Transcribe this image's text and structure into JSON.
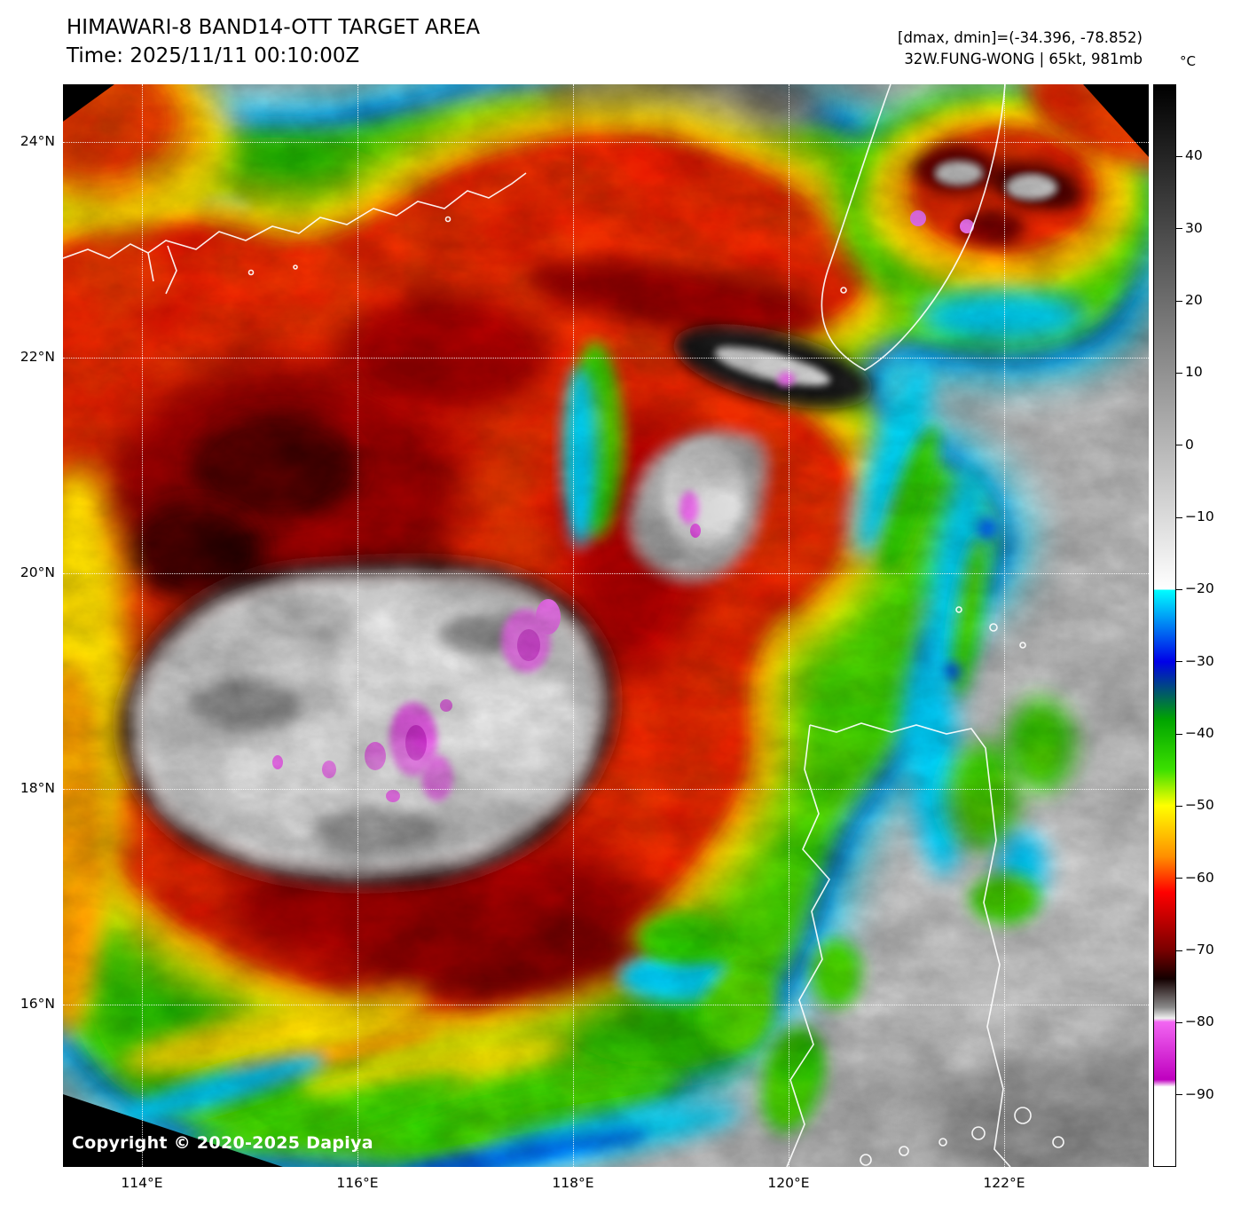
{
  "header": {
    "title": "HIMAWARI-8 BAND14-OTT TARGET AREA",
    "time": "Time: 2025/11/11 00:10:00Z",
    "annotation_line1": "[dmax, dmin]=(-34.396, -78.852)",
    "annotation_line2": "32W.FUNG-WONG | 65kt, 981mb"
  },
  "map": {
    "copyright": "Copyright © 2020-2025 Dapiya"
  },
  "chart_data": {
    "type": "heatmap",
    "title": "HIMAWARI-8 BAND14-OTT TARGET AREA",
    "time": "2025/11/11 00:10:00Z",
    "satellite": "HIMAWARI-8",
    "band": "BAND14-OTT",
    "storm": {
      "designation": "32W",
      "name": "FUNG-WONG",
      "intensity": "65kt",
      "pressure": "981mb"
    },
    "dmax": -34.396,
    "dmin": -78.852,
    "axes": {
      "lon_range": [
        113.268,
        123.342
      ],
      "lat_range": [
        14.49,
        24.535
      ],
      "lon_ticks": [
        {
          "value": 114,
          "label": "114°E"
        },
        {
          "value": 116,
          "label": "116°E"
        },
        {
          "value": 118,
          "label": "118°E"
        },
        {
          "value": 120,
          "label": "120°E"
        },
        {
          "value": 122,
          "label": "122°E"
        }
      ],
      "lat_ticks": [
        {
          "value": 24,
          "label": "24°N"
        },
        {
          "value": 22,
          "label": "22°N"
        },
        {
          "value": 20,
          "label": "20°N"
        },
        {
          "value": 18,
          "label": "18°N"
        },
        {
          "value": 16,
          "label": "16°N"
        }
      ]
    },
    "colorbar": {
      "unit": "°C",
      "max": 50,
      "min": -100,
      "ticks": [
        40,
        30,
        20,
        10,
        0,
        -10,
        -20,
        -30,
        -40,
        -50,
        -60,
        -70,
        -80,
        -90
      ],
      "tick_labels": [
        "40",
        "30",
        "20",
        "10",
        "0",
        "−10",
        "−20",
        "−30",
        "−40",
        "−50",
        "−60",
        "−70",
        "−80",
        "−90"
      ],
      "stops": [
        {
          "t": 50,
          "color": "#000000"
        },
        {
          "t": -20,
          "color": "#ffffff"
        },
        {
          "t": -20,
          "color": "#00ffff"
        },
        {
          "t": -30,
          "color": "#0000e8"
        },
        {
          "t": -38,
          "color": "#00a400"
        },
        {
          "t": -45,
          "color": "#3ce000"
        },
        {
          "t": -50,
          "color": "#ffff00"
        },
        {
          "t": -57,
          "color": "#ff9000"
        },
        {
          "t": -62,
          "color": "#ff0000"
        },
        {
          "t": -70,
          "color": "#7a0000"
        },
        {
          "t": -74,
          "color": "#140000"
        },
        {
          "t": -78,
          "color": "#8a8a8a"
        },
        {
          "t": -79.5,
          "color": "#efefef"
        },
        {
          "t": -80,
          "color": "#f266f2"
        },
        {
          "t": -88,
          "color": "#bf00bf"
        },
        {
          "t": -89,
          "color": "#ffffff"
        },
        {
          "t": -100,
          "color": "#ffffff"
        }
      ]
    },
    "grid": true,
    "gridline_style": "dotted-white",
    "legend_position": "right"
  }
}
